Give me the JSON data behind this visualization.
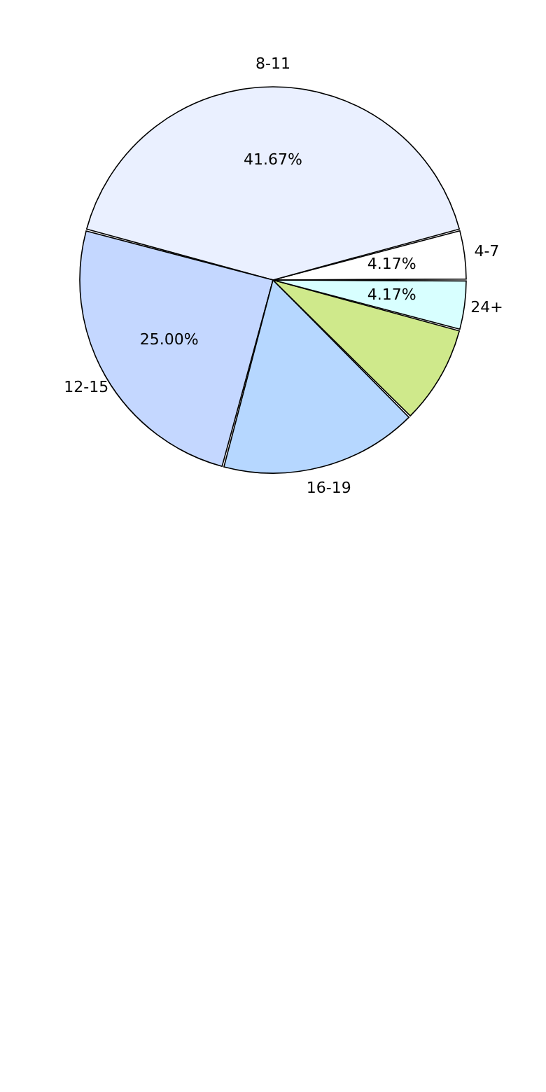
{
  "chart_data": {
    "type": "pie",
    "categories": [
      "4-7",
      "8-11",
      "12-15",
      "16-19",
      null,
      "24+"
    ],
    "values": [
      4.17,
      41.67,
      25.0,
      16.67,
      8.33,
      4.17
    ],
    "value_labels": [
      "4.17%",
      "41.67%",
      "25.00%",
      null,
      null,
      "4.17%"
    ],
    "colors": [
      "#ffffff",
      "#eaf0ff",
      "#c4d7ff",
      "#b6d7ff",
      "#cfe98b",
      "#d8ffff"
    ]
  }
}
